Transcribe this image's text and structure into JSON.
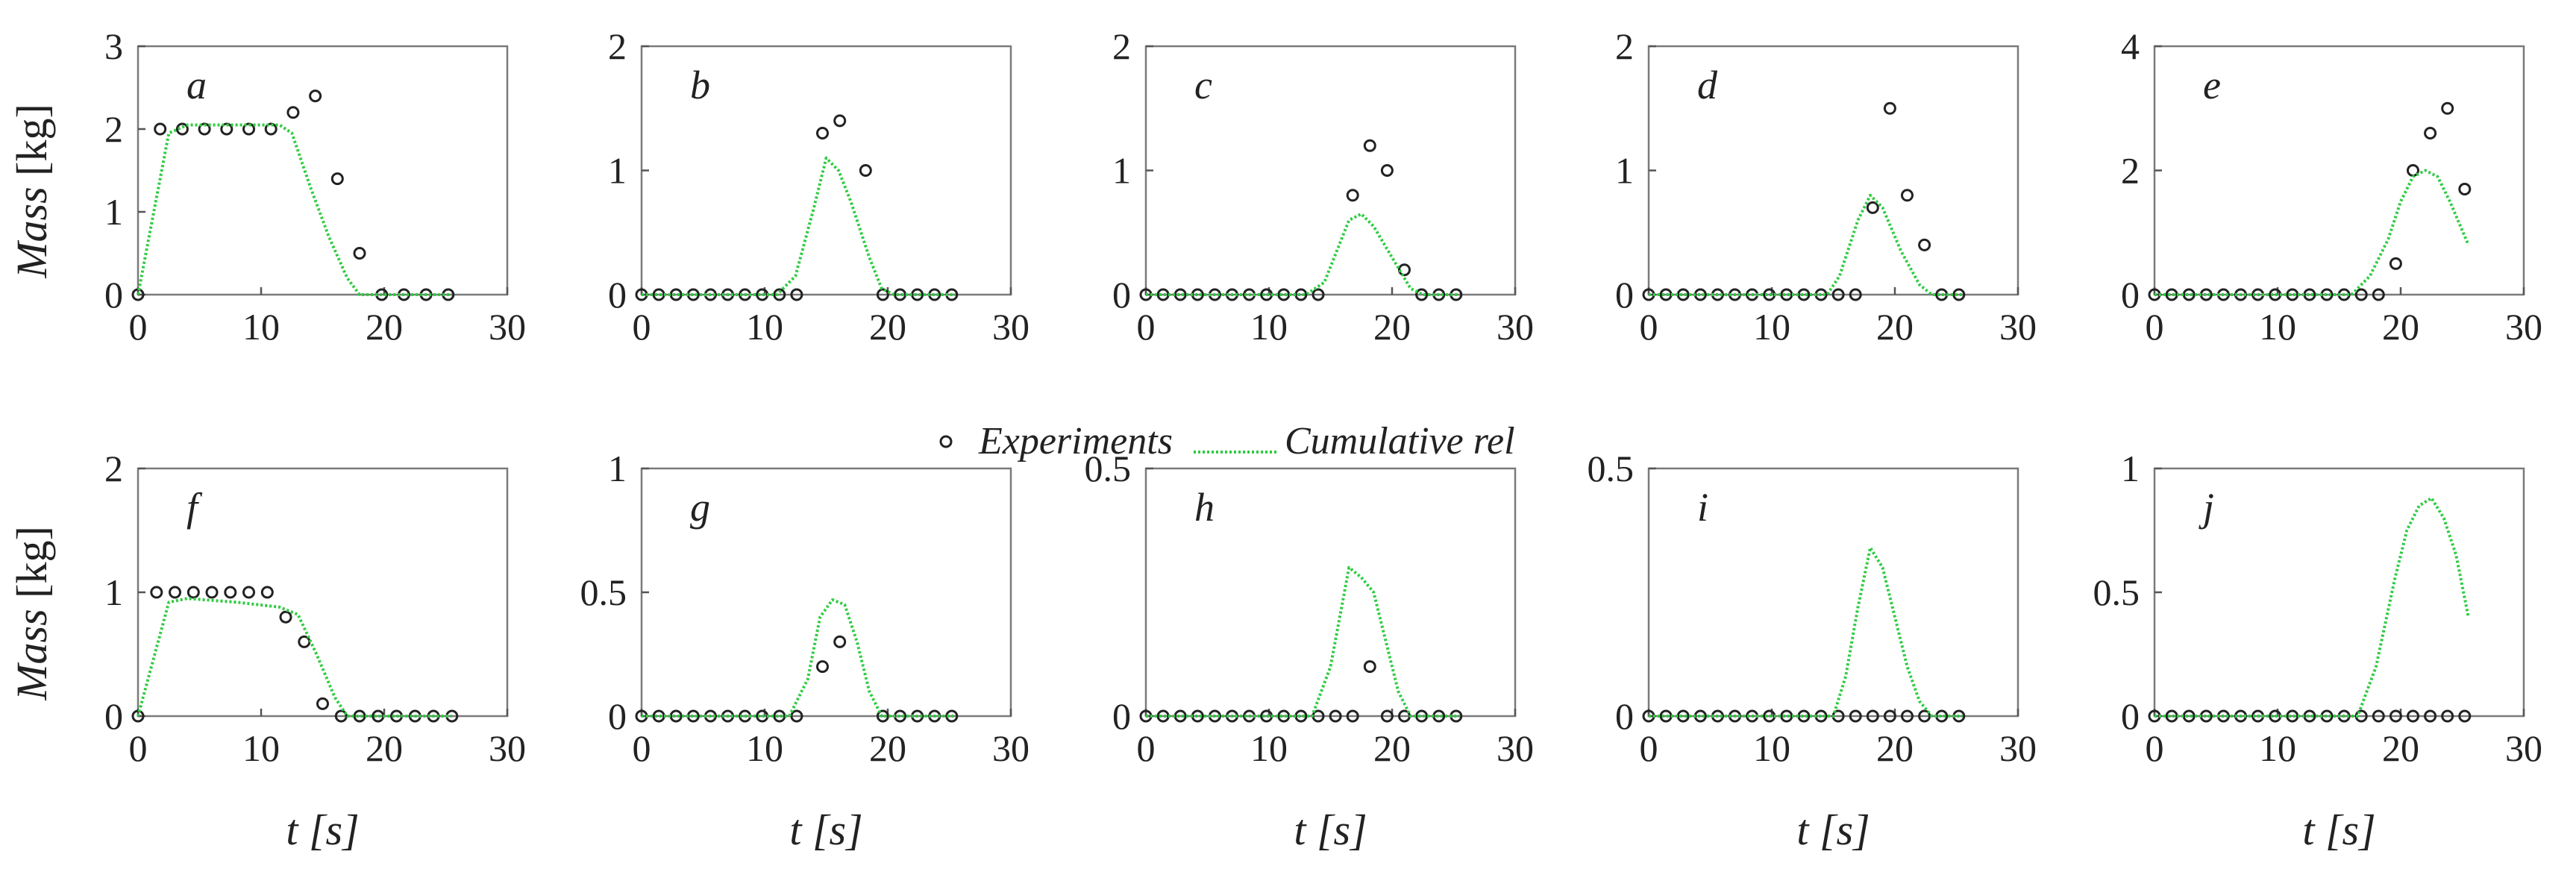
{
  "legend": {
    "experiments_label": "Experiments",
    "model_label": "Cumulative rel",
    "model_color": "#2ECC40",
    "marker_color": "#222222",
    "marker_shape": "open-circle"
  },
  "axis_labels": {
    "ylabel_var": "Mass",
    "ylabel_unit": "[kg]",
    "xlabel": "t [s]"
  },
  "chart_data": [
    {
      "type": "line",
      "panel": "a",
      "xlim": [
        0,
        30
      ],
      "ylim": [
        0,
        3
      ],
      "xticks": [
        0,
        10,
        20,
        30
      ],
      "yticks": [
        0,
        1,
        2,
        3
      ],
      "ytick_labels": [
        "0",
        "1",
        "2",
        "3"
      ],
      "series": [
        {
          "name": "Experiments",
          "kind": "scatter",
          "x": [
            0,
            1.8,
            3.6,
            5.4,
            7.2,
            9,
            10.8,
            12.6,
            14.4,
            16.2,
            18,
            19.8,
            21.6,
            23.4,
            25.2
          ],
          "y": [
            0,
            2,
            2,
            2,
            2,
            2,
            2,
            2.2,
            2.4,
            1.4,
            0.5,
            0,
            0,
            0,
            0
          ]
        },
        {
          "name": "Cumulative rel",
          "kind": "line",
          "x": [
            0,
            2.5,
            4,
            8,
            11.5,
            12.5,
            14,
            15.5,
            17,
            18,
            20,
            25.5
          ],
          "y": [
            0,
            1.95,
            2.05,
            2.05,
            2.05,
            1.95,
            1.3,
            0.7,
            0.2,
            0,
            0,
            0
          ]
        }
      ]
    },
    {
      "type": "line",
      "panel": "b",
      "xlim": [
        0,
        30
      ],
      "ylim": [
        0,
        2
      ],
      "xticks": [
        0,
        10,
        20,
        30
      ],
      "yticks": [
        0,
        1,
        2
      ],
      "ytick_labels": [
        "0",
        "1",
        "2"
      ],
      "series": [
        {
          "name": "Experiments",
          "kind": "scatter",
          "x": [
            0,
            1.4,
            2.8,
            4.2,
            5.6,
            7,
            8.4,
            9.8,
            11.2,
            12.6,
            14.7,
            16.1,
            18.2,
            19.6,
            21,
            22.4,
            23.8,
            25.2
          ],
          "y": [
            0,
            0,
            0,
            0,
            0,
            0,
            0,
            0,
            0,
            0,
            1.3,
            1.4,
            1,
            0,
            0,
            0,
            0,
            0
          ]
        },
        {
          "name": "Cumulative rel",
          "kind": "line",
          "x": [
            0,
            11,
            12.5,
            14,
            15,
            16,
            17,
            18.5,
            19.5,
            20.5,
            25.5
          ],
          "y": [
            0,
            0,
            0.15,
            0.7,
            1.1,
            1.0,
            0.75,
            0.3,
            0.05,
            0,
            0
          ]
        }
      ]
    },
    {
      "type": "line",
      "panel": "c",
      "xlim": [
        0,
        30
      ],
      "ylim": [
        0,
        2
      ],
      "xticks": [
        0,
        10,
        20,
        30
      ],
      "yticks": [
        0,
        1,
        2
      ],
      "ytick_labels": [
        "0",
        "1",
        "2"
      ],
      "series": [
        {
          "name": "Experiments",
          "kind": "scatter",
          "x": [
            0,
            1.4,
            2.8,
            4.2,
            5.6,
            7,
            8.4,
            9.8,
            11.2,
            12.6,
            14,
            16.8,
            18.2,
            19.6,
            21,
            22.4,
            23.8,
            25.2
          ],
          "y": [
            0,
            0,
            0,
            0,
            0,
            0,
            0,
            0,
            0,
            0,
            0,
            0.8,
            1.2,
            1,
            0.2,
            0,
            0,
            0
          ]
        },
        {
          "name": "Cumulative rel",
          "kind": "line",
          "x": [
            0,
            13,
            14.5,
            15.5,
            16.5,
            17.5,
            18.5,
            20,
            21.5,
            22.5,
            25.5
          ],
          "y": [
            0,
            0,
            0.1,
            0.35,
            0.6,
            0.65,
            0.55,
            0.3,
            0.05,
            0,
            0
          ]
        }
      ]
    },
    {
      "type": "line",
      "panel": "d",
      "xlim": [
        0,
        30
      ],
      "ylim": [
        0,
        2
      ],
      "xticks": [
        0,
        10,
        20,
        30
      ],
      "yticks": [
        0,
        1,
        2
      ],
      "ytick_labels": [
        "0",
        "1",
        "2"
      ],
      "series": [
        {
          "name": "Experiments",
          "kind": "scatter",
          "x": [
            0,
            1.4,
            2.8,
            4.2,
            5.6,
            7,
            8.4,
            9.8,
            11.2,
            12.6,
            14,
            15.4,
            16.8,
            18.2,
            19.6,
            21,
            22.4,
            23.8,
            25.2
          ],
          "y": [
            0,
            0,
            0,
            0,
            0,
            0,
            0,
            0,
            0,
            0,
            0,
            0,
            0,
            0.7,
            1.5,
            0.8,
            0.4,
            0,
            0
          ]
        },
        {
          "name": "Cumulative rel",
          "kind": "line",
          "x": [
            0,
            14.5,
            15.5,
            17,
            18,
            19,
            20.5,
            22,
            23,
            25.5
          ],
          "y": [
            0,
            0,
            0.15,
            0.6,
            0.8,
            0.7,
            0.35,
            0.08,
            0,
            0
          ]
        }
      ]
    },
    {
      "type": "line",
      "panel": "e",
      "xlim": [
        0,
        30
      ],
      "ylim": [
        0,
        4
      ],
      "xticks": [
        0,
        10,
        20,
        30
      ],
      "yticks": [
        0,
        2,
        4
      ],
      "ytick_labels": [
        "0",
        "2",
        "4"
      ],
      "series": [
        {
          "name": "Experiments",
          "kind": "scatter",
          "x": [
            0,
            1.4,
            2.8,
            4.2,
            5.6,
            7,
            8.4,
            9.8,
            11.2,
            12.6,
            14,
            15.4,
            16.8,
            18.2,
            19.6,
            21,
            22.4,
            23.8,
            25.2
          ],
          "y": [
            0,
            0,
            0,
            0,
            0,
            0,
            0,
            0,
            0,
            0,
            0,
            0,
            0,
            0,
            0.5,
            2,
            2.6,
            3,
            1.7
          ]
        },
        {
          "name": "Cumulative rel",
          "kind": "line",
          "x": [
            0,
            16,
            17.5,
            19,
            20,
            21,
            22,
            23,
            24,
            25.5
          ],
          "y": [
            0,
            0,
            0.3,
            0.9,
            1.5,
            1.9,
            2.0,
            1.9,
            1.5,
            0.8
          ]
        }
      ]
    },
    {
      "type": "line",
      "panel": "f",
      "xlim": [
        0,
        30
      ],
      "ylim": [
        0,
        2
      ],
      "xticks": [
        0,
        10,
        20,
        30
      ],
      "yticks": [
        0,
        1,
        2
      ],
      "ytick_labels": [
        "0",
        "1",
        "2"
      ],
      "series": [
        {
          "name": "Experiments",
          "kind": "scatter",
          "x": [
            0,
            1.5,
            3,
            4.5,
            6,
            7.5,
            9,
            10.5,
            12,
            13.5,
            15,
            16.5,
            18,
            19.5,
            21,
            22.5,
            24,
            25.5
          ],
          "y": [
            0,
            1,
            1,
            1,
            1,
            1,
            1,
            1,
            0.8,
            0.6,
            0.1,
            0,
            0,
            0,
            0,
            0,
            0,
            0
          ]
        },
        {
          "name": "Cumulative rel",
          "kind": "line",
          "x": [
            0,
            2.5,
            4,
            8,
            11.5,
            13,
            14.5,
            16,
            17,
            25.5
          ],
          "y": [
            0,
            0.92,
            0.95,
            0.92,
            0.88,
            0.82,
            0.5,
            0.15,
            0,
            0
          ]
        }
      ]
    },
    {
      "type": "line",
      "panel": "g",
      "xlim": [
        0,
        30
      ],
      "ylim": [
        0,
        1
      ],
      "xticks": [
        0,
        10,
        20,
        30
      ],
      "yticks": [
        0,
        0.5,
        1
      ],
      "ytick_labels": [
        "0",
        "0.5",
        "1"
      ],
      "series": [
        {
          "name": "Experiments",
          "kind": "scatter",
          "x": [
            0,
            1.4,
            2.8,
            4.2,
            5.6,
            7,
            8.4,
            9.8,
            11.2,
            12.6,
            14.7,
            16.1,
            19.6,
            21,
            22.4,
            23.8,
            25.2
          ],
          "y": [
            0,
            0,
            0,
            0,
            0,
            0,
            0,
            0,
            0,
            0,
            0.2,
            0.3,
            0,
            0,
            0,
            0,
            0
          ]
        },
        {
          "name": "Cumulative rel",
          "kind": "line",
          "x": [
            0,
            12,
            13.5,
            14.5,
            15.5,
            16.5,
            17.5,
            18.5,
            19.5,
            25.5
          ],
          "y": [
            0,
            0,
            0.15,
            0.4,
            0.47,
            0.45,
            0.3,
            0.1,
            0,
            0
          ]
        }
      ]
    },
    {
      "type": "line",
      "panel": "h",
      "xlim": [
        0,
        30
      ],
      "ylim": [
        0,
        0.5
      ],
      "xticks": [
        0,
        10,
        20,
        30
      ],
      "yticks": [
        0,
        0.5
      ],
      "ytick_labels": [
        "0",
        "0.5"
      ],
      "series": [
        {
          "name": "Experiments",
          "kind": "scatter",
          "x": [
            0,
            1.4,
            2.8,
            4.2,
            5.6,
            7,
            8.4,
            9.8,
            11.2,
            12.6,
            14,
            15.4,
            16.8,
            18.2,
            19.6,
            21,
            22.4,
            23.8,
            25.2
          ],
          "y": [
            0,
            0,
            0,
            0,
            0,
            0,
            0,
            0,
            0,
            0,
            0,
            0,
            0,
            0.1,
            0,
            0,
            0,
            0,
            0
          ]
        },
        {
          "name": "Cumulative rel",
          "kind": "line",
          "x": [
            0,
            13.5,
            15,
            16.5,
            17.5,
            18.5,
            19.5,
            20.5,
            21.5,
            25.5
          ],
          "y": [
            0,
            0,
            0.1,
            0.3,
            0.28,
            0.25,
            0.15,
            0.05,
            0,
            0
          ]
        }
      ]
    },
    {
      "type": "line",
      "panel": "i",
      "xlim": [
        0,
        30
      ],
      "ylim": [
        0,
        0.5
      ],
      "xticks": [
        0,
        10,
        20,
        30
      ],
      "yticks": [
        0,
        0.5
      ],
      "ytick_labels": [
        "0",
        "0.5"
      ],
      "series": [
        {
          "name": "Experiments",
          "kind": "scatter",
          "x": [
            0,
            1.4,
            2.8,
            4.2,
            5.6,
            7,
            8.4,
            9.8,
            11.2,
            12.6,
            14,
            15.4,
            16.8,
            18.2,
            19.6,
            21,
            22.4,
            23.8,
            25.2
          ],
          "y": [
            0,
            0,
            0,
            0,
            0,
            0,
            0,
            0,
            0,
            0,
            0,
            0,
            0,
            0,
            0,
            0,
            0,
            0,
            0
          ]
        },
        {
          "name": "Cumulative rel",
          "kind": "line",
          "x": [
            0,
            15,
            16,
            17,
            18,
            19,
            20,
            21,
            22,
            23,
            25.5
          ],
          "y": [
            0,
            0,
            0.08,
            0.22,
            0.34,
            0.3,
            0.2,
            0.1,
            0.03,
            0,
            0
          ]
        }
      ]
    },
    {
      "type": "line",
      "panel": "j",
      "xlim": [
        0,
        30
      ],
      "ylim": [
        0,
        1
      ],
      "xticks": [
        0,
        10,
        20,
        30
      ],
      "yticks": [
        0,
        0.5,
        1
      ],
      "ytick_labels": [
        "0",
        "0.5",
        "1"
      ],
      "series": [
        {
          "name": "Experiments",
          "kind": "scatter",
          "x": [
            0,
            1.4,
            2.8,
            4.2,
            5.6,
            7,
            8.4,
            9.8,
            11.2,
            12.6,
            14,
            15.4,
            16.8,
            18.2,
            19.6,
            21,
            22.4,
            23.8,
            25.2
          ],
          "y": [
            0,
            0,
            0,
            0,
            0,
            0,
            0,
            0,
            0,
            0,
            0,
            0,
            0,
            0,
            0,
            0,
            0,
            0,
            0
          ]
        },
        {
          "name": "Cumulative rel",
          "kind": "line",
          "x": [
            0,
            16.5,
            18,
            19.5,
            20.5,
            21.5,
            22.5,
            23.5,
            24.5,
            25.5
          ],
          "y": [
            0,
            0,
            0.2,
            0.55,
            0.75,
            0.85,
            0.88,
            0.8,
            0.65,
            0.4
          ]
        }
      ]
    }
  ]
}
